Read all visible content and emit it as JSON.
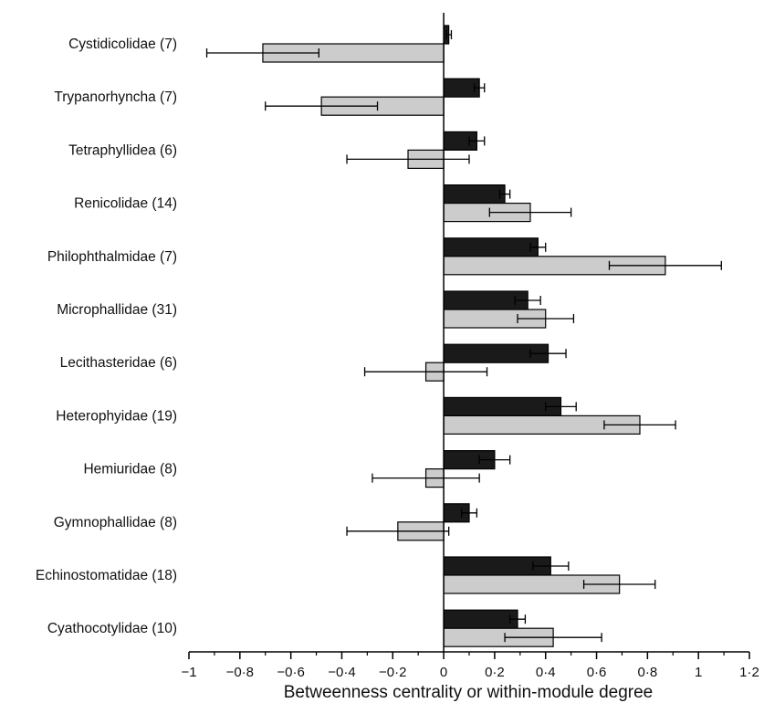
{
  "chart_data": {
    "type": "bar",
    "orientation": "horizontal",
    "xlabel": "Betweenness centrality or within-module degree",
    "xlim": [
      -1,
      1.2
    ],
    "xticks": [
      -1,
      -0.8,
      -0.6,
      -0.4,
      -0.2,
      0,
      0.2,
      0.4,
      0.6,
      0.8,
      1,
      1.2
    ],
    "xtick_labels": [
      "−1",
      "−0·8",
      "−0·6",
      "−0·4",
      "−0·2",
      "0",
      "0·2",
      "0·4",
      "0·6",
      "0·8",
      "1",
      "1·2"
    ],
    "categories": [
      "Cystidicolidae (7)",
      "Trypanorhyncha (7)",
      "Tetraphyllidea (6)",
      "Renicolidae (14)",
      "Philophthalmidae (7)",
      "Microphallidae (31)",
      "Lecithasteridae (6)",
      "Heterophyidae (19)",
      "Hemiuridae (8)",
      "Gymnophallidae (8)",
      "Echinostomatidae (18)",
      "Cyathocotylidae (10)"
    ],
    "series": [
      {
        "color": "#1a1a1a",
        "values": [
          0.02,
          0.14,
          0.13,
          0.24,
          0.37,
          0.33,
          0.41,
          0.46,
          0.2,
          0.1,
          0.42,
          0.29
        ],
        "errors": [
          0.01,
          0.02,
          0.03,
          0.02,
          0.03,
          0.05,
          0.07,
          0.06,
          0.06,
          0.03,
          0.07,
          0.03
        ]
      },
      {
        "color": "#cccccc",
        "values": [
          -0.71,
          -0.48,
          -0.14,
          0.34,
          0.87,
          0.4,
          -0.07,
          0.77,
          -0.07,
          -0.18,
          0.69,
          0.43
        ],
        "errors": [
          0.22,
          0.22,
          0.24,
          0.16,
          0.22,
          0.11,
          0.24,
          0.14,
          0.21,
          0.2,
          0.14,
          0.19
        ]
      }
    ],
    "grid": false,
    "legend": "none"
  }
}
